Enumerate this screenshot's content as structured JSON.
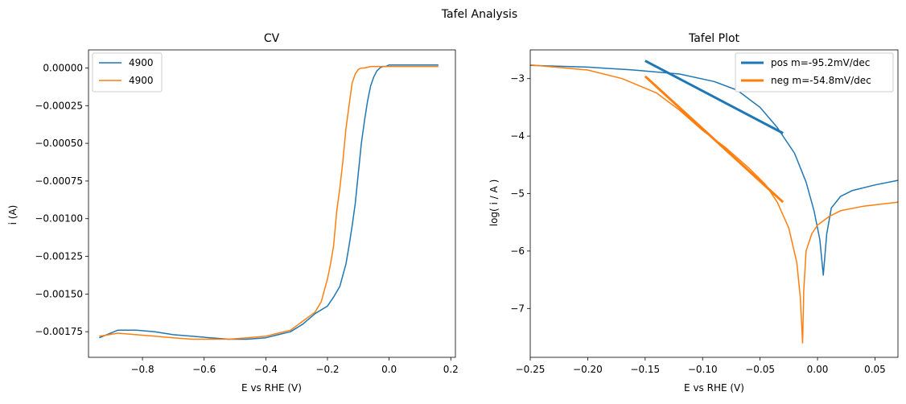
{
  "figure": {
    "suptitle": "Tafel Analysis"
  },
  "chart_data": [
    {
      "type": "line",
      "title": "CV",
      "xlabel": "E vs RHE (V)",
      "ylabel": "i (A)",
      "xlim": [
        -0.975,
        0.215
      ],
      "ylim": [
        -0.00192,
        0.00012
      ],
      "xticks": [
        -0.8,
        -0.6,
        -0.4,
        -0.2,
        0.0,
        0.2
      ],
      "xtick_labels": [
        "−0.8",
        "−0.6",
        "−0.4",
        "−0.2",
        "0.0",
        "0.2"
      ],
      "yticks": [
        0.0,
        -0.00025,
        -0.0005,
        -0.00075,
        -0.001,
        -0.00125,
        -0.0015,
        -0.00175
      ],
      "ytick_labels": [
        "0.00000",
        "−0.00025",
        "−0.00050",
        "−0.00075",
        "−0.00100",
        "−0.00125",
        "−0.00150",
        "−0.00175"
      ],
      "grid": false,
      "legend": "top-left",
      "series": [
        {
          "name": "4900",
          "color": "#1f77b4",
          "x": [
            -0.94,
            -0.88,
            -0.82,
            -0.76,
            -0.7,
            -0.64,
            -0.58,
            -0.52,
            -0.46,
            -0.4,
            -0.36,
            -0.32,
            -0.28,
            -0.24,
            -0.2,
            -0.18,
            -0.16,
            -0.14,
            -0.13,
            -0.12,
            -0.11,
            -0.1,
            -0.09,
            -0.08,
            -0.07,
            -0.06,
            -0.05,
            -0.04,
            -0.03,
            -0.02,
            -0.01,
            0.0,
            0.02,
            0.05,
            0.1,
            0.16
          ],
          "y": [
            -0.00179,
            -0.00174,
            -0.00174,
            -0.00175,
            -0.00177,
            -0.00178,
            -0.00179,
            -0.0018,
            -0.0018,
            -0.00179,
            -0.00177,
            -0.00175,
            -0.0017,
            -0.00163,
            -0.00158,
            -0.00152,
            -0.00145,
            -0.0013,
            -0.00118,
            -0.00105,
            -0.0009,
            -0.0007,
            -0.0005,
            -0.00035,
            -0.00022,
            -0.00012,
            -6e-05,
            -2e-05,
            0.0,
            1e-05,
            1e-05,
            2e-05,
            2e-05,
            2e-05,
            2e-05,
            2e-05
          ]
        },
        {
          "name": "4900",
          "color": "#ff7f0e",
          "x": [
            -0.94,
            -0.88,
            -0.82,
            -0.76,
            -0.7,
            -0.64,
            -0.58,
            -0.52,
            -0.46,
            -0.4,
            -0.36,
            -0.32,
            -0.28,
            -0.24,
            -0.22,
            -0.2,
            -0.19,
            -0.18,
            -0.17,
            -0.16,
            -0.15,
            -0.14,
            -0.13,
            -0.12,
            -0.11,
            -0.1,
            -0.09,
            -0.08,
            -0.06,
            -0.04,
            -0.02,
            0.0,
            0.05,
            0.1,
            0.16
          ],
          "y": [
            -0.00178,
            -0.00176,
            -0.00177,
            -0.00178,
            -0.00179,
            -0.0018,
            -0.0018,
            -0.0018,
            -0.00179,
            -0.00178,
            -0.00176,
            -0.00174,
            -0.00168,
            -0.00162,
            -0.00155,
            -0.0014,
            -0.0013,
            -0.00118,
            -0.00095,
            -0.0008,
            -0.00062,
            -0.0004,
            -0.00025,
            -0.0001,
            -4e-05,
            -1e-05,
            0.0,
            0.0,
            1e-05,
            1e-05,
            1e-05,
            1e-05,
            1e-05,
            1e-05,
            1e-05
          ]
        }
      ]
    },
    {
      "type": "line",
      "title": "Tafel Plot",
      "xlabel": "E vs RHE (V)",
      "ylabel": "log( i / A )",
      "xlim": [
        -0.25,
        0.07
      ],
      "ylim": [
        -7.85,
        -2.5
      ],
      "xticks": [
        -0.25,
        -0.2,
        -0.15,
        -0.1,
        -0.05,
        0.0,
        0.05
      ],
      "xtick_labels": [
        "−0.25",
        "−0.20",
        "−0.15",
        "−0.10",
        "−0.05",
        "0.00",
        "0.05"
      ],
      "yticks": [
        -3,
        -4,
        -5,
        -6,
        -7
      ],
      "ytick_labels": [
        "−3",
        "−4",
        "−5",
        "−6",
        "−7"
      ],
      "grid": false,
      "legend": "top-right",
      "series": [
        {
          "color": "#1f77b4",
          "x": [
            -0.25,
            -0.2,
            -0.16,
            -0.12,
            -0.09,
            -0.07,
            -0.05,
            -0.035,
            -0.02,
            -0.01,
            -0.003,
            0.002,
            0.005,
            0.008,
            0.012,
            0.02,
            0.03,
            0.05,
            0.07
          ],
          "y": [
            -2.77,
            -2.8,
            -2.85,
            -2.92,
            -3.05,
            -3.2,
            -3.5,
            -3.85,
            -4.3,
            -4.8,
            -5.3,
            -5.8,
            -6.42,
            -5.7,
            -5.25,
            -5.05,
            -4.95,
            -4.85,
            -4.77
          ]
        },
        {
          "color": "#ff7f0e",
          "x": [
            -0.25,
            -0.2,
            -0.17,
            -0.14,
            -0.12,
            -0.1,
            -0.08,
            -0.06,
            -0.045,
            -0.035,
            -0.025,
            -0.018,
            -0.015,
            -0.013,
            -0.012,
            -0.01,
            -0.005,
            0.0,
            0.01,
            0.02,
            0.04,
            0.07
          ],
          "y": [
            -2.76,
            -2.85,
            -3.0,
            -3.25,
            -3.55,
            -3.9,
            -4.2,
            -4.55,
            -4.85,
            -5.15,
            -5.6,
            -6.2,
            -6.8,
            -7.6,
            -6.7,
            -6.0,
            -5.7,
            -5.55,
            -5.4,
            -5.3,
            -5.22,
            -5.15
          ]
        },
        {
          "name": "pos m=-95.2mV/dec",
          "color": "#1f77b4",
          "fit": true,
          "x": [
            -0.15,
            -0.03
          ],
          "y": [
            -2.69,
            -3.95
          ]
        },
        {
          "name": "neg m=-54.8mV/dec",
          "color": "#ff7f0e",
          "fit": true,
          "x": [
            -0.15,
            -0.03
          ],
          "y": [
            -2.96,
            -5.15
          ]
        }
      ]
    }
  ]
}
